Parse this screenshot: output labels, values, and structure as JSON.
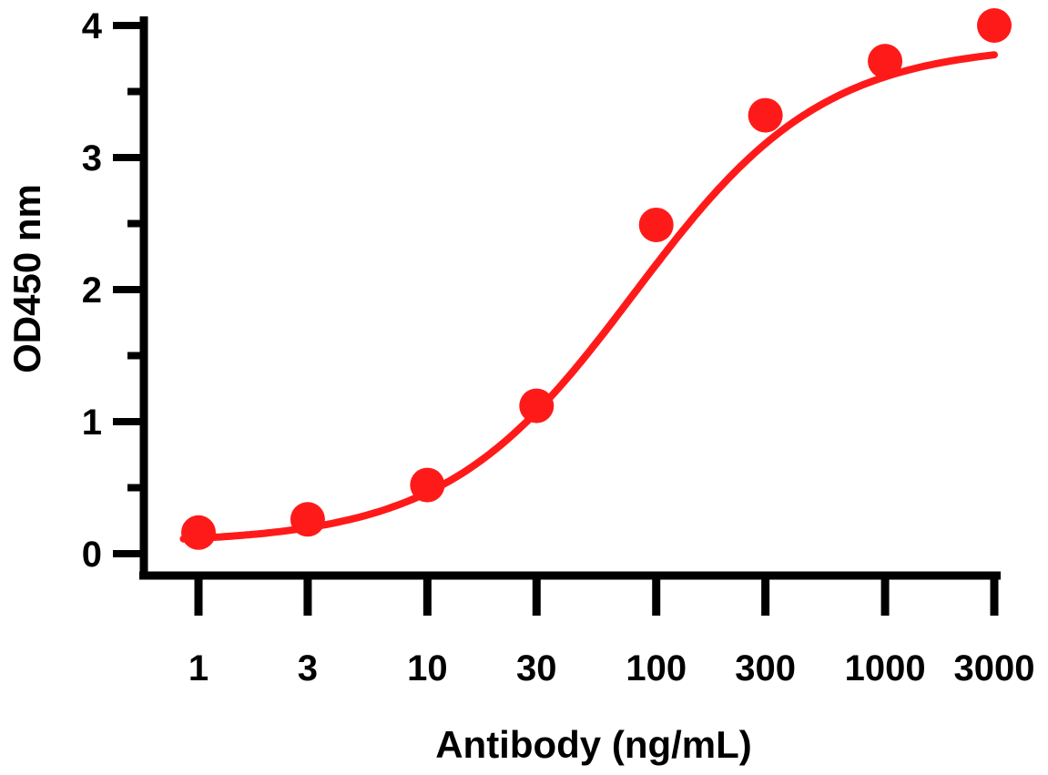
{
  "chart_data": {
    "type": "scatter",
    "title": "",
    "xlabel": "Antibody (ng/mL)",
    "ylabel": "OD450 nm",
    "x_scale": "log",
    "x_ticks": [
      1,
      3,
      10,
      30,
      100,
      300,
      1000,
      3000
    ],
    "x_tick_labels": [
      "1",
      "3",
      "10",
      "30",
      "100",
      "300",
      "1000",
      "3000"
    ],
    "y_ticks": [
      0,
      1,
      2,
      3,
      4
    ],
    "y_tick_labels": [
      "0",
      "1",
      "2",
      "3",
      "4"
    ],
    "ylim": [
      0,
      4
    ],
    "grid": false,
    "legend": "none",
    "color": "#ff1a1a",
    "series": [
      {
        "x": [
          1,
          3,
          10,
          30,
          100,
          300,
          1000,
          3000
        ],
        "y": [
          0.16,
          0.26,
          0.52,
          1.12,
          2.49,
          3.32,
          3.73,
          4.0
        ]
      }
    ],
    "fit_curve": {
      "model": "4PL",
      "bottom": 0.08,
      "top": 3.86,
      "ec50": 80,
      "hill": 1.05
    }
  }
}
